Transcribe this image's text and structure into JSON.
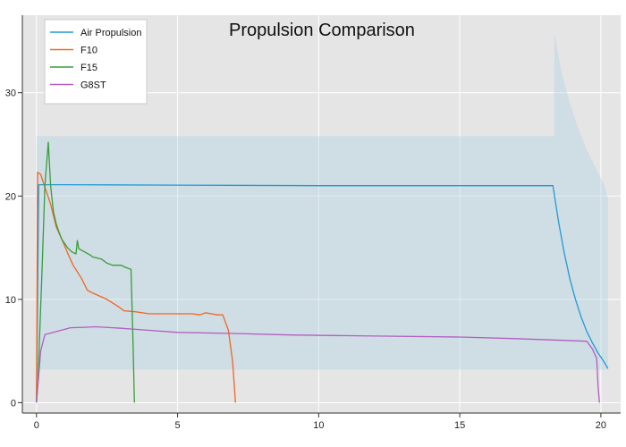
{
  "chart_data": {
    "type": "line",
    "title": "Propulsion Comparison",
    "xlabel": "",
    "ylabel": "",
    "xlim": [
      -0.5,
      20.7
    ],
    "ylim": [
      -1.0,
      37.5
    ],
    "x_ticks": [
      0,
      5,
      10,
      15,
      20
    ],
    "y_ticks": [
      0,
      10,
      20,
      30
    ],
    "x_tick_labels": [
      "0",
      "5",
      "10",
      "15",
      "20"
    ],
    "y_tick_labels": [
      "0",
      "10",
      "20",
      "30"
    ],
    "grid": true,
    "legend_position": "top-left",
    "colors": {
      "plot_background": "#e5e5e5",
      "grid": "#ffffff",
      "band_fill": "#a6cee3"
    },
    "band": {
      "name": "Air Propulsion range",
      "upper": [
        [
          0.0,
          25.8
        ],
        [
          18.35,
          25.8
        ],
        [
          18.35,
          35.8
        ],
        [
          18.6,
          32.0
        ],
        [
          18.9,
          29.0
        ],
        [
          19.2,
          26.5
        ],
        [
          19.5,
          24.5
        ],
        [
          19.8,
          22.8
        ],
        [
          20.1,
          21.2
        ],
        [
          20.25,
          19.8
        ]
      ],
      "lower": [
        [
          20.25,
          3.2
        ],
        [
          0.0,
          3.2
        ]
      ]
    },
    "series": [
      {
        "name": "Air Propulsion",
        "color": "#1f9bd7",
        "points": [
          [
            0.0,
            0.0
          ],
          [
            0.08,
            21.1
          ],
          [
            1.0,
            21.1
          ],
          [
            5.0,
            21.05
          ],
          [
            10.0,
            21.0
          ],
          [
            15.0,
            21.0
          ],
          [
            18.3,
            21.0
          ],
          [
            18.5,
            17.5
          ],
          [
            18.7,
            14.5
          ],
          [
            18.9,
            12.0
          ],
          [
            19.1,
            10.0
          ],
          [
            19.3,
            8.3
          ],
          [
            19.5,
            6.9
          ],
          [
            19.7,
            5.8
          ],
          [
            19.9,
            4.8
          ],
          [
            20.1,
            4.0
          ],
          [
            20.25,
            3.3
          ]
        ]
      },
      {
        "name": "F10",
        "color": "#f26522",
        "points": [
          [
            0.0,
            0.2
          ],
          [
            0.04,
            22.3
          ],
          [
            0.15,
            22.1
          ],
          [
            0.28,
            21.0
          ],
          [
            0.38,
            20.2
          ],
          [
            0.5,
            19.2
          ],
          [
            0.7,
            17.0
          ],
          [
            0.9,
            15.8
          ],
          [
            1.1,
            14.5
          ],
          [
            1.3,
            13.3
          ],
          [
            1.6,
            12.0
          ],
          [
            1.8,
            10.9
          ],
          [
            2.0,
            10.6
          ],
          [
            2.5,
            10.0
          ],
          [
            2.9,
            9.3
          ],
          [
            3.1,
            8.9
          ],
          [
            3.5,
            8.8
          ],
          [
            4.0,
            8.6
          ],
          [
            4.5,
            8.6
          ],
          [
            5.0,
            8.6
          ],
          [
            5.5,
            8.6
          ],
          [
            5.8,
            8.5
          ],
          [
            6.0,
            8.7
          ],
          [
            6.4,
            8.5
          ],
          [
            6.6,
            8.5
          ],
          [
            6.8,
            7.0
          ],
          [
            6.95,
            4.0
          ],
          [
            7.05,
            0.0
          ]
        ]
      },
      {
        "name": "F15",
        "color": "#3a9d3a",
        "points": [
          [
            0.0,
            0.0
          ],
          [
            0.05,
            2.0
          ],
          [
            0.2,
            13.0
          ],
          [
            0.3,
            21.0
          ],
          [
            0.42,
            25.2
          ],
          [
            0.5,
            21.0
          ],
          [
            0.6,
            18.5
          ],
          [
            0.7,
            17.3
          ],
          [
            0.8,
            16.5
          ],
          [
            0.9,
            15.8
          ],
          [
            1.0,
            15.4
          ],
          [
            1.1,
            15.0
          ],
          [
            1.25,
            14.6
          ],
          [
            1.4,
            14.4
          ],
          [
            1.45,
            15.7
          ],
          [
            1.5,
            14.9
          ],
          [
            1.7,
            14.6
          ],
          [
            1.9,
            14.3
          ],
          [
            2.0,
            14.1
          ],
          [
            2.3,
            13.9
          ],
          [
            2.5,
            13.5
          ],
          [
            2.7,
            13.3
          ],
          [
            3.0,
            13.3
          ],
          [
            3.15,
            13.1
          ],
          [
            3.35,
            12.9
          ],
          [
            3.42,
            6.0
          ],
          [
            3.47,
            0.0
          ]
        ]
      },
      {
        "name": "G8ST",
        "color": "#b35ec1",
        "points": [
          [
            0.0,
            0.0
          ],
          [
            0.15,
            5.0
          ],
          [
            0.3,
            6.6
          ],
          [
            0.6,
            6.8
          ],
          [
            1.0,
            7.1
          ],
          [
            1.2,
            7.25
          ],
          [
            1.7,
            7.3
          ],
          [
            2.1,
            7.35
          ],
          [
            3.0,
            7.2
          ],
          [
            4.0,
            7.0
          ],
          [
            5.0,
            6.8
          ],
          [
            7.0,
            6.7
          ],
          [
            9.0,
            6.55
          ],
          [
            12.0,
            6.45
          ],
          [
            15.0,
            6.35
          ],
          [
            17.0,
            6.2
          ],
          [
            19.5,
            5.95
          ],
          [
            19.7,
            5.2
          ],
          [
            19.85,
            4.3
          ],
          [
            19.9,
            1.5
          ],
          [
            19.95,
            0.0
          ]
        ]
      }
    ]
  }
}
